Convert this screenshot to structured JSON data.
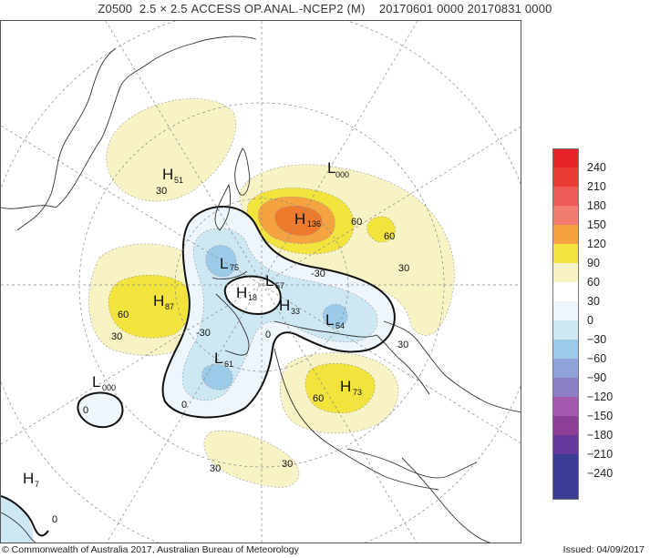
{
  "title": {
    "field": "Z0500",
    "grid": "2.5 × 2.5",
    "source": "ACCESS OP.ANAL.-NCEP2 (M)",
    "period": "20170601 0000 20170831 0000"
  },
  "colors": {
    "pos30": "#f7f3c4",
    "pos60": "#f2e43c",
    "pos90": "#f4a340",
    "pos120": "#ef7a2c",
    "neg0": "#eef6fb",
    "neg30": "#cde8f3",
    "neg60": "#9ccbea",
    "contour": "#111111",
    "grid": "#888888",
    "coast": "#333333"
  },
  "legend": {
    "levels": [
      "240",
      "210",
      "180",
      "150",
      "120",
      "90",
      "60",
      "30",
      "0",
      "−30",
      "−60",
      "−90",
      "−120",
      "−150",
      "−180",
      "−210",
      "−240"
    ],
    "swatches": [
      "#e8242a",
      "#e63a33",
      "#ee5a56",
      "#f27d6e",
      "#f4a340",
      "#f2e43c",
      "#f7f3c4",
      "#ffffff",
      "#eef6fb",
      "#cde8f3",
      "#9ccbea",
      "#8ea3da",
      "#8c7fc6",
      "#a45aaf",
      "#8d3f97",
      "#63389a",
      "#3b3d95"
    ]
  },
  "centers": {
    "H51": {
      "letter": "H",
      "sub": "51"
    },
    "L000_top": {
      "letter": "L",
      "sub": "000"
    },
    "H136": {
      "letter": "H",
      "sub": "136"
    },
    "L75": {
      "letter": "L",
      "sub": "75"
    },
    "L57": {
      "letter": "L",
      "sub": "57"
    },
    "H18": {
      "letter": "H",
      "sub": "18"
    },
    "H33": {
      "letter": "H",
      "sub": "33"
    },
    "L54": {
      "letter": "L",
      "sub": "54"
    },
    "H87": {
      "letter": "H",
      "sub": "87"
    },
    "L61": {
      "letter": "L",
      "sub": "61"
    },
    "H73": {
      "letter": "H",
      "sub": "73"
    },
    "L000_left": {
      "letter": "L",
      "sub": "000"
    },
    "H7": {
      "letter": "H",
      "sub": "7"
    }
  },
  "contour_labels": {
    "c30_a": "30",
    "c60_a": "60",
    "c60_b": "60",
    "c30_b": "30",
    "cm30_a": "-30",
    "c60_c": "60",
    "c30_c": "30",
    "cm30_b": "-30",
    "c0_a": "0",
    "c30_d": "30",
    "c0_b": "0",
    "c0_c": "0",
    "c60_d": "60",
    "c30_e": "30",
    "c0_d": "0"
  },
  "footer": {
    "copyright": "© Commonwealth of Australia 2017, Australian Bureau of Meteorology",
    "issued": "Issued: 04/09/2017"
  }
}
